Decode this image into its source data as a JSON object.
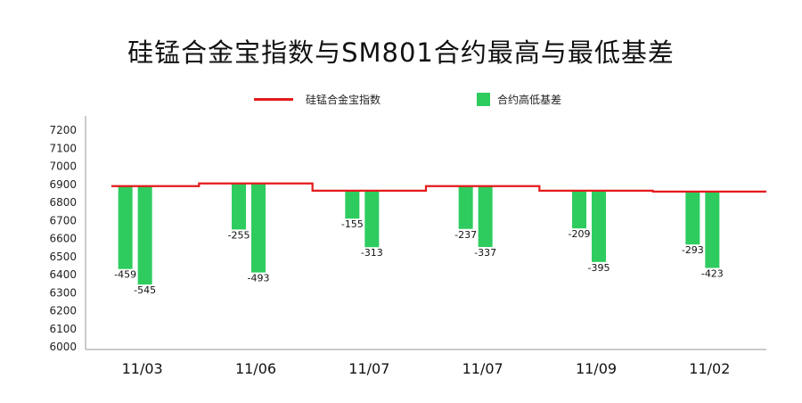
{
  "colors": {
    "line": "#e41a1c",
    "bar": "#2ecc5f",
    "axis": "#bbbbbb"
  },
  "chart_data": {
    "type": "bar",
    "title": "硅锰合金宝指数与SM801合约最高与最低基差",
    "legend": {
      "placement": "top",
      "line_label": "硅锰合金宝指数",
      "bar_label": "合约高低基差"
    },
    "categories": [
      "11/03",
      "11/06",
      "11/07",
      "11/07",
      "11/09",
      "11/02"
    ],
    "yticks": [
      "7200",
      "7100",
      "7000",
      "6900",
      "6800",
      "6700",
      "6600",
      "6500",
      "6400",
      "6300",
      "6200",
      "6100",
      "6000"
    ],
    "ylim": [
      6000,
      7200
    ],
    "index_values": [
      6890,
      6905,
      6865,
      6890,
      6865,
      6860
    ],
    "series": [
      {
        "values": [
          -459,
          -255,
          -155,
          -237,
          -209,
          -293
        ]
      },
      {
        "values": [
          -545,
          -493,
          -313,
          -337,
          -395,
          -423
        ]
      }
    ],
    "value_labels": [
      [
        "-459",
        "-545"
      ],
      [
        "-255",
        "-493"
      ],
      [
        "-155",
        "-313"
      ],
      [
        "-237",
        "-337"
      ],
      [
        "-209",
        "-395"
      ],
      [
        "-293",
        "-423"
      ]
    ]
  }
}
